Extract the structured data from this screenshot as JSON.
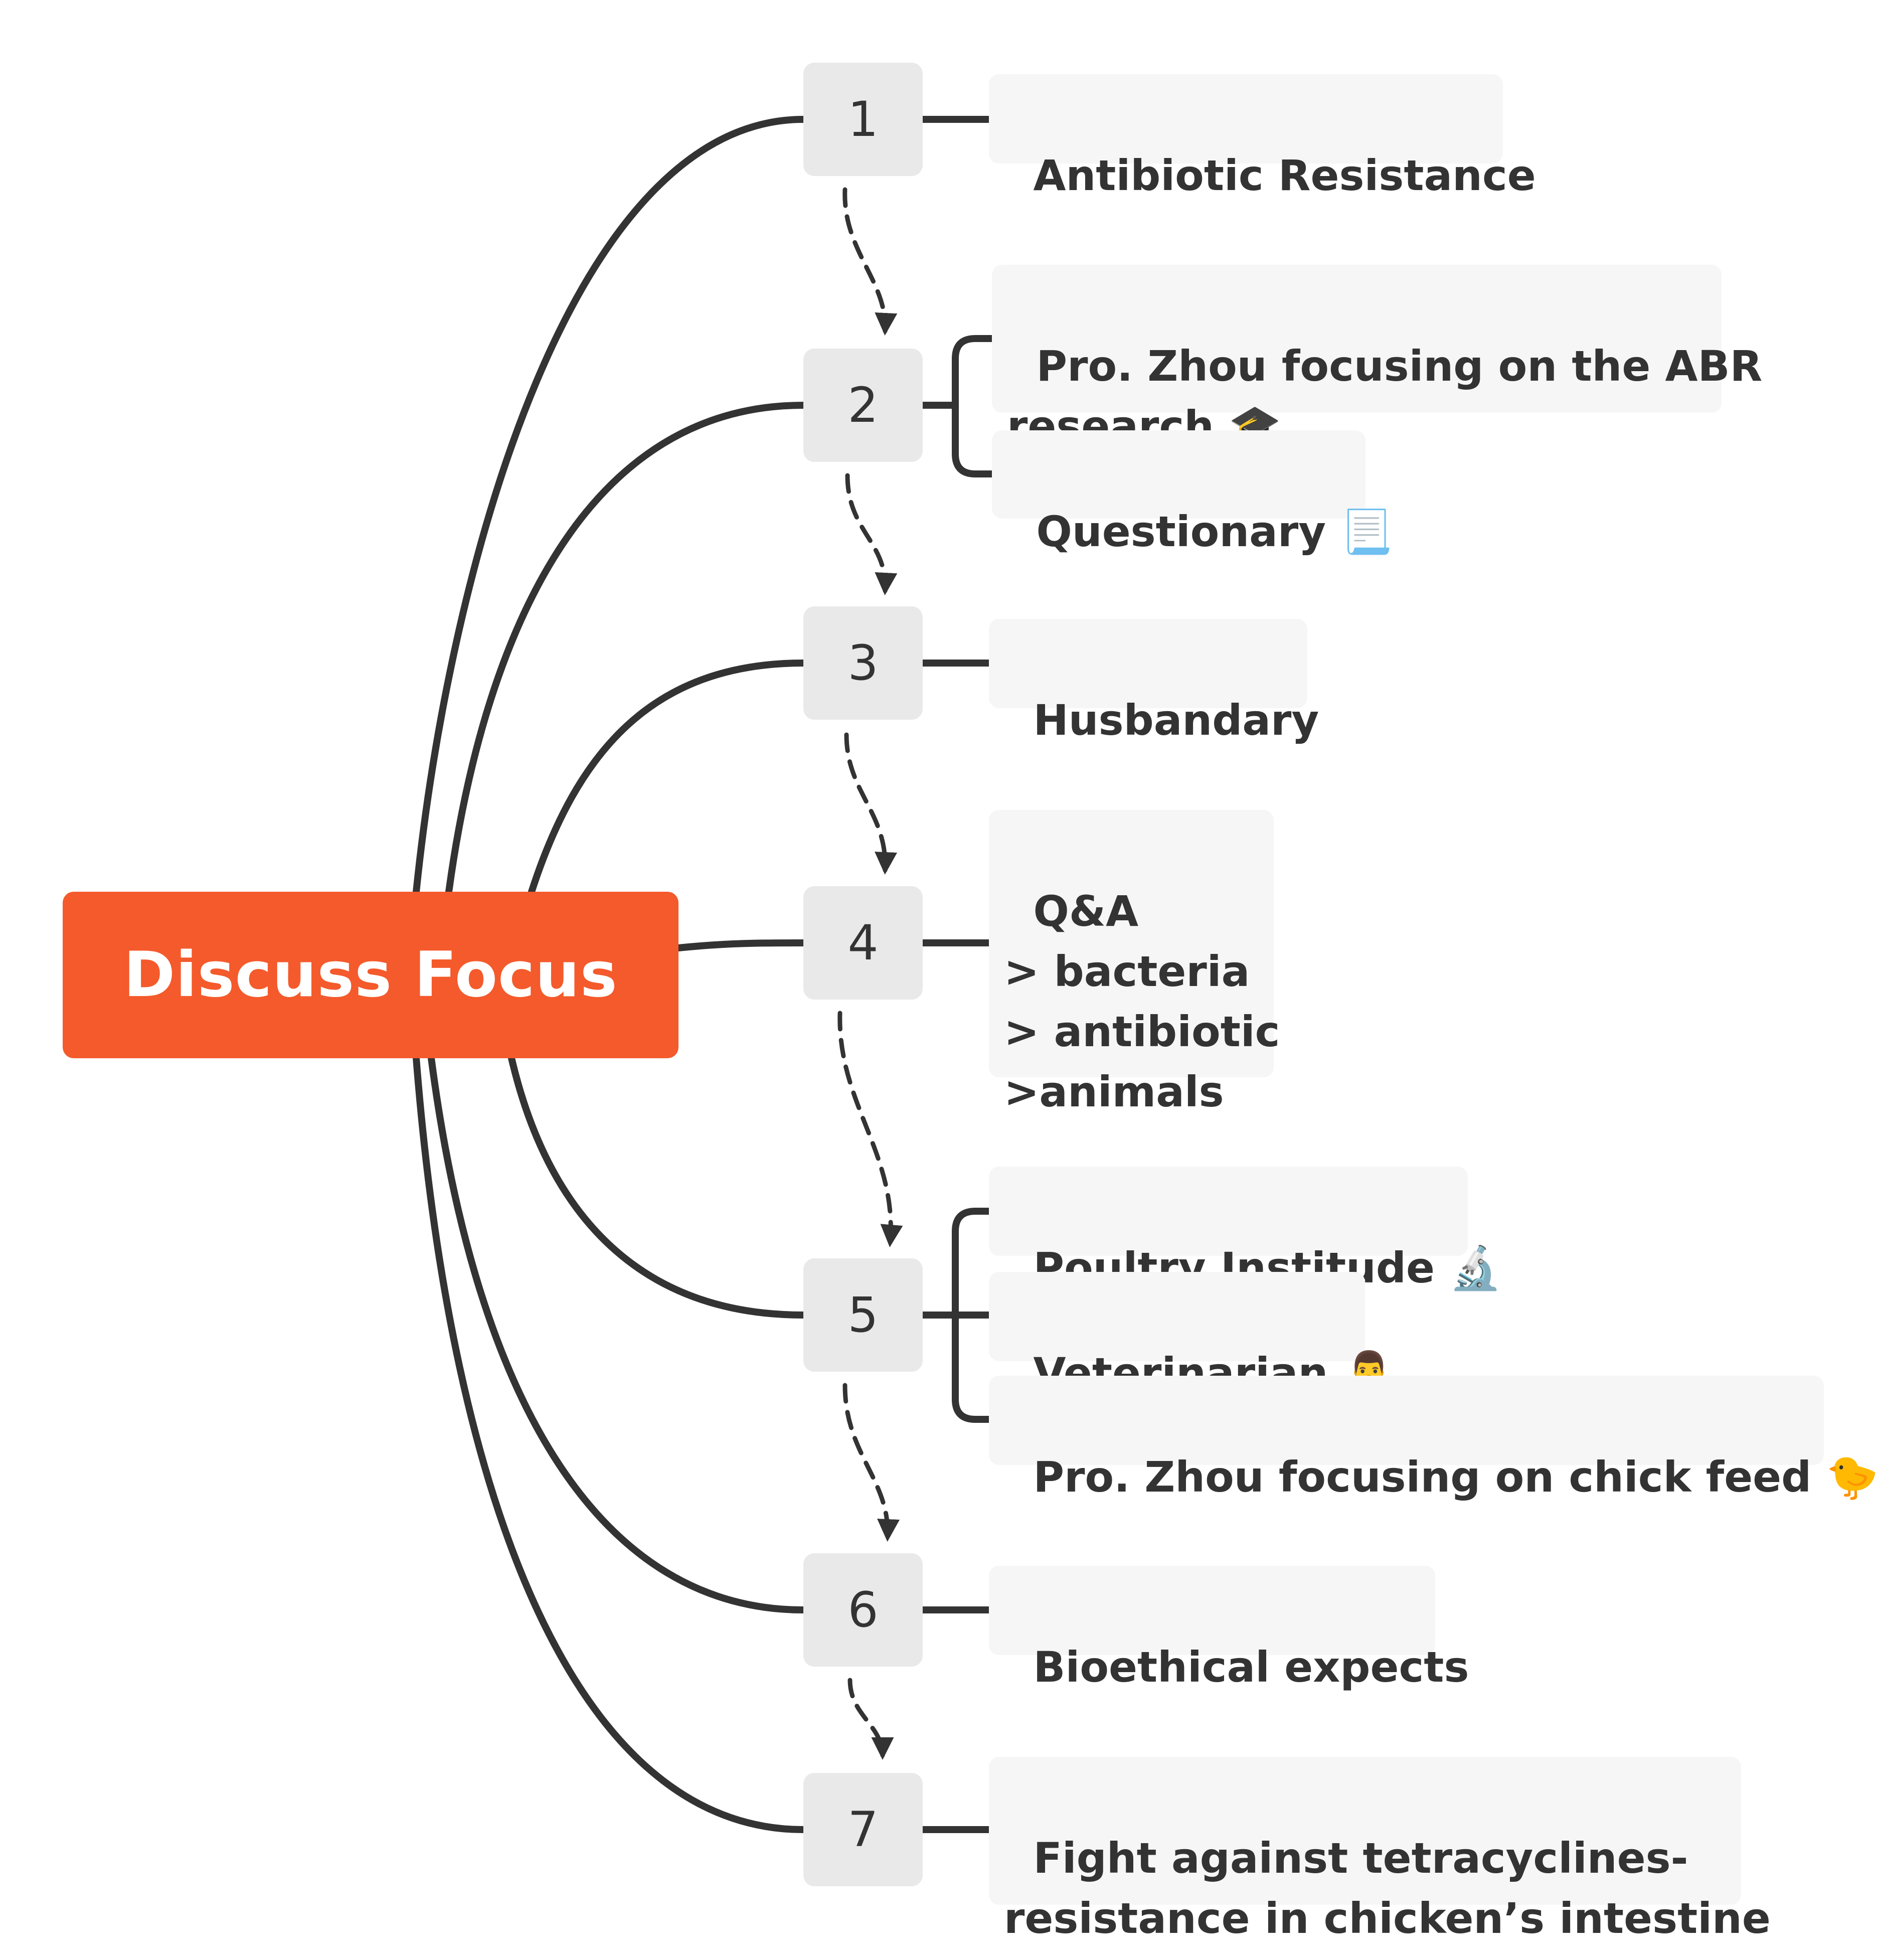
{
  "root": {
    "label": "Discuss Focus"
  },
  "steps": [
    {
      "number": "1",
      "items": [
        {
          "text": "Antibiotic Resistance"
        }
      ]
    },
    {
      "number": "2",
      "items": [
        {
          "text": "Pro. Zhou focusing on the ABR\nresearch",
          "emoji": "🎓"
        },
        {
          "text": "Questionary",
          "emoji": "📃"
        }
      ]
    },
    {
      "number": "3",
      "items": [
        {
          "text": "Husbandary"
        }
      ]
    },
    {
      "number": "4",
      "items": [
        {
          "text": "Q&A\n> bacteria\n> antibiotic\n>animals"
        }
      ]
    },
    {
      "number": "5",
      "items": [
        {
          "text": "Poultry Institude",
          "emoji": "🔬"
        },
        {
          "text": "Veterinarian",
          "emoji": "👨‍⚕️"
        },
        {
          "text": "Pro. Zhou focusing on chick feed",
          "emoji": "🐤"
        }
      ]
    },
    {
      "number": "6",
      "items": [
        {
          "text": "Bioethical expects"
        }
      ]
    },
    {
      "number": "7",
      "items": [
        {
          "text": "Fight against tetracyclines-\nresistance in chicken’s intestine"
        }
      ]
    }
  ],
  "colors": {
    "root": "#F45A2B",
    "line": "#333333",
    "number_box": "#E9E9E9",
    "leaf_box": "#F6F6F6"
  }
}
